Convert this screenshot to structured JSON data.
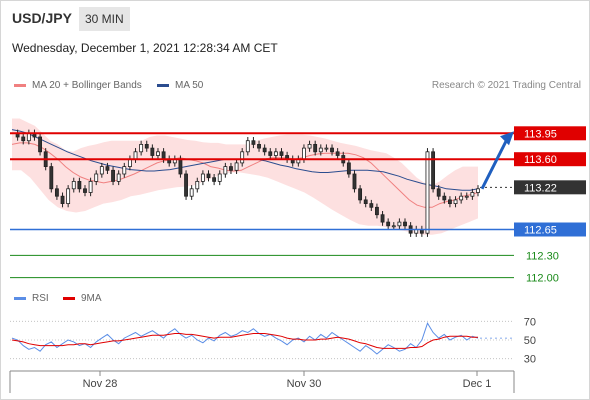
{
  "header": {
    "symbol": "USD/JPY",
    "timeframe": "30 MIN",
    "datetime": "Wednesday, December 1, 2021 12:28:34 AM CET"
  },
  "legend": {
    "ma20": {
      "label": "MA 20 + Bollinger Bands",
      "color": "#f08080"
    },
    "ma50": {
      "label": "MA 50",
      "color": "#2b4d8f"
    },
    "copyright": "Research © 2021 Trading Central",
    "rsi": {
      "label": "RSI",
      "color": "#5b8ee6"
    },
    "ma9": {
      "label": "9MA",
      "color": "#e00000"
    }
  },
  "chart_data": [
    {
      "type": "candlestick",
      "ylim": [
        111.9,
        114.4
      ],
      "x_ticks": [
        "Nov 28",
        "Nov 30",
        "Dec 1"
      ],
      "levels": [
        {
          "value": 113.95,
          "label": "113.95",
          "kind": "resistance",
          "color": "#e00000"
        },
        {
          "value": 113.6,
          "label": "113.60",
          "kind": "resistance",
          "color": "#e00000"
        },
        {
          "value": 113.22,
          "label": "113.22",
          "kind": "last-price",
          "color": "#333333"
        },
        {
          "value": 112.65,
          "label": "112.65",
          "kind": "support",
          "color": "#2f6fd6"
        },
        {
          "value": 112.3,
          "label": "112.30",
          "kind": "target",
          "color": "#1a8a1a"
        },
        {
          "value": 112.0,
          "label": "112.00",
          "kind": "target",
          "color": "#1a8a1a"
        }
      ],
      "close": [
        113.95,
        113.9,
        113.85,
        113.95,
        113.9,
        113.7,
        113.5,
        113.2,
        113.1,
        113.0,
        113.2,
        113.3,
        113.2,
        113.15,
        113.3,
        113.4,
        113.5,
        113.45,
        113.3,
        113.4,
        113.5,
        113.6,
        113.7,
        113.8,
        113.75,
        113.65,
        113.7,
        113.6,
        113.55,
        113.6,
        113.4,
        113.1,
        113.2,
        113.3,
        113.4,
        113.35,
        113.3,
        113.4,
        113.5,
        113.45,
        113.55,
        113.7,
        113.85,
        113.8,
        113.75,
        113.7,
        113.65,
        113.7,
        113.65,
        113.6,
        113.55,
        113.6,
        113.75,
        113.8,
        113.7,
        113.75,
        113.75,
        113.7,
        113.65,
        113.55,
        113.4,
        113.2,
        113.05,
        113.0,
        112.95,
        112.85,
        112.75,
        112.7,
        112.7,
        112.75,
        112.7,
        112.6,
        112.65,
        112.6,
        113.7,
        113.2,
        113.1,
        113.05,
        113.0,
        113.05,
        113.1,
        113.1,
        113.15,
        113.2
      ],
      "ma20": [
        113.8,
        113.82,
        113.82,
        113.8,
        113.75,
        113.68,
        113.6,
        113.5,
        113.42,
        113.36,
        113.32,
        113.3,
        113.28,
        113.3,
        113.32,
        113.36,
        113.4,
        113.45,
        113.5,
        113.55,
        113.58,
        113.6,
        113.62,
        113.6,
        113.58,
        113.55,
        113.5,
        113.48,
        113.45,
        113.44,
        113.45,
        113.5,
        113.55,
        113.6,
        113.62,
        113.62,
        113.62,
        113.6,
        113.62,
        113.65,
        113.67,
        113.68,
        113.68,
        113.68,
        113.68,
        113.66,
        113.62,
        113.55,
        113.45,
        113.35,
        113.25,
        113.15,
        113.05,
        112.98,
        112.95,
        112.95,
        113.0,
        113.03,
        113.05,
        113.1,
        113.12,
        113.15
      ],
      "bb_upper": [
        114.15,
        114.15,
        114.1,
        114.05,
        113.95,
        113.85,
        113.8,
        113.72,
        113.7,
        113.75,
        113.78,
        113.8,
        113.83,
        113.85,
        113.85,
        113.85,
        113.85,
        113.85,
        113.9,
        113.92,
        113.92,
        113.9,
        113.88,
        113.86,
        113.85,
        113.83,
        113.82,
        113.82,
        113.8,
        113.8,
        113.8,
        113.8,
        113.85,
        113.88,
        113.9,
        113.92,
        113.93,
        113.93,
        113.93,
        113.92,
        113.9,
        113.88,
        113.85,
        113.82,
        113.8,
        113.78,
        113.75,
        113.72,
        113.7,
        113.68,
        113.62,
        113.55,
        113.45,
        113.35,
        113.28,
        113.25,
        113.3,
        113.38,
        113.45,
        113.5,
        113.5,
        113.5
      ],
      "bb_lower": [
        113.45,
        113.45,
        113.35,
        113.2,
        113.05,
        112.95,
        112.9,
        112.88,
        112.9,
        112.95,
        113.0,
        113.02,
        113.05,
        113.1,
        113.12,
        113.15,
        113.18,
        113.2,
        113.22,
        113.23,
        113.25,
        113.3,
        113.35,
        113.4,
        113.42,
        113.42,
        113.4,
        113.38,
        113.35,
        113.3,
        113.25,
        113.2,
        113.15,
        113.08,
        113.0,
        112.92,
        112.85,
        112.78,
        112.72,
        112.7,
        112.7,
        112.68,
        112.65,
        112.63,
        112.6,
        112.58,
        112.58,
        112.6,
        112.65,
        112.7,
        112.75,
        112.8
      ],
      "ma50": [
        114.0,
        113.98,
        113.95,
        113.9,
        113.85,
        113.8,
        113.75,
        113.7,
        113.66,
        113.62,
        113.58,
        113.55,
        113.52,
        113.5,
        113.48,
        113.46,
        113.45,
        113.44,
        113.44,
        113.45,
        113.46,
        113.48,
        113.5,
        113.52,
        113.54,
        113.56,
        113.58,
        113.6,
        113.6,
        113.6,
        113.6,
        113.6,
        113.58,
        113.55,
        113.52,
        113.5,
        113.47,
        113.45,
        113.43,
        113.42,
        113.42,
        113.43,
        113.44,
        113.45,
        113.45,
        113.45,
        113.44,
        113.43,
        113.4,
        113.37,
        113.33,
        113.3,
        113.27,
        113.25,
        113.23,
        113.2,
        113.19,
        113.18,
        113.18,
        113.2
      ],
      "forecast": {
        "from": 113.2,
        "to": 113.95
      }
    },
    {
      "type": "line",
      "name": "RSI panel",
      "ylim": [
        20,
        80
      ],
      "reference_lines": [
        70,
        50,
        30
      ],
      "series": [
        {
          "name": "RSI",
          "color": "#5b8ee6",
          "values": [
            52,
            50,
            44,
            40,
            42,
            38,
            45,
            48,
            42,
            46,
            50,
            48,
            44,
            46,
            42,
            48,
            52,
            56,
            50,
            46,
            52,
            55,
            58,
            54,
            57,
            60,
            56,
            52,
            58,
            62,
            56,
            52,
            55,
            50,
            47,
            52,
            49,
            55,
            58,
            54,
            56,
            60,
            58,
            62,
            57,
            54,
            56,
            52,
            49,
            45,
            50,
            52,
            48,
            54,
            50,
            56,
            52,
            58,
            54,
            50,
            46,
            42,
            38,
            44,
            40,
            35,
            40,
            45,
            42,
            38,
            40,
            46,
            42,
            50,
            68,
            58,
            52,
            56,
            50,
            53,
            55,
            50,
            54,
            52
          ]
        },
        {
          "name": "9MA",
          "color": "#e00000",
          "values": [
            50,
            49,
            48,
            46,
            45,
            44,
            44,
            44,
            44,
            44,
            45,
            45,
            46,
            46,
            45,
            46,
            47,
            48,
            49,
            49,
            50,
            51,
            52,
            53,
            54,
            55,
            55,
            55,
            56,
            57,
            57,
            56,
            56,
            55,
            54,
            53,
            52,
            53,
            53,
            53,
            54,
            55,
            56,
            57,
            57,
            57,
            56,
            55,
            54,
            52,
            51,
            51,
            50,
            50,
            50,
            51,
            51,
            52,
            53,
            52,
            51,
            49,
            47,
            46,
            44,
            42,
            41,
            41,
            41,
            41,
            41,
            42,
            42,
            43,
            47,
            50,
            51,
            53,
            54,
            54,
            54,
            54,
            53,
            53
          ]
        }
      ]
    }
  ]
}
